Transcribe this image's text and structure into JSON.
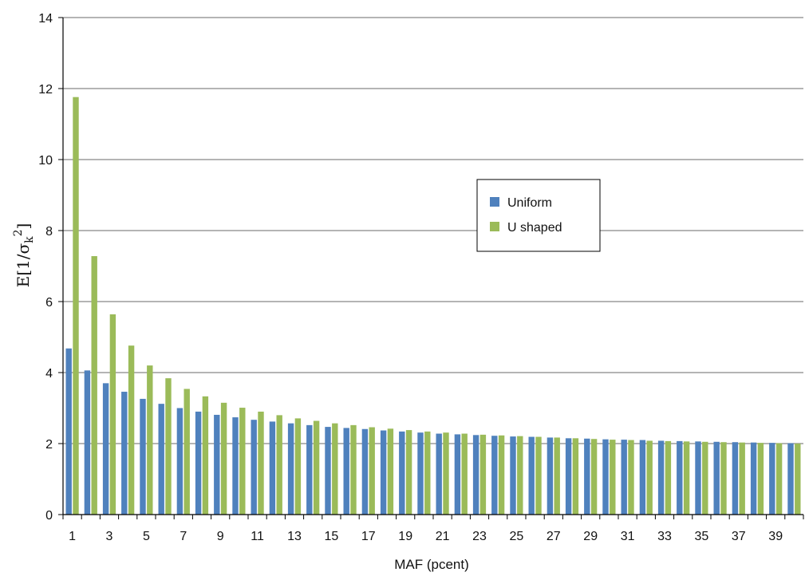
{
  "chart_data": {
    "type": "bar",
    "title": "",
    "xlabel": "MAF (pcent)",
    "ylabel": "E[1/σk2]",
    "ylabel_parts": {
      "prefix": "E[1/σ",
      "subscript": "k",
      "superscript": "2",
      "suffix": "]"
    },
    "ylim": [
      0,
      14
    ],
    "yticks": [
      0,
      2,
      4,
      6,
      8,
      10,
      12,
      14
    ],
    "grid": true,
    "legend_position": "center-right",
    "categories": [
      1,
      2,
      3,
      4,
      5,
      6,
      7,
      8,
      9,
      10,
      11,
      12,
      13,
      14,
      15,
      16,
      17,
      18,
      19,
      20,
      21,
      22,
      23,
      24,
      25,
      26,
      27,
      28,
      29,
      30,
      31,
      32,
      33,
      34,
      35,
      36,
      37,
      38,
      39,
      40
    ],
    "xtick_labels_shown": [
      1,
      3,
      5,
      7,
      9,
      11,
      13,
      15,
      17,
      19,
      21,
      23,
      25,
      27,
      29,
      31,
      33,
      35,
      37,
      39
    ],
    "series": [
      {
        "name": "Uniform",
        "color": "#4f81bd",
        "values": [
          4.68,
          4.06,
          3.7,
          3.46,
          3.26,
          3.12,
          3.0,
          2.9,
          2.81,
          2.74,
          2.67,
          2.62,
          2.57,
          2.52,
          2.47,
          2.44,
          2.41,
          2.37,
          2.34,
          2.31,
          2.28,
          2.26,
          2.24,
          2.22,
          2.2,
          2.19,
          2.17,
          2.15,
          2.14,
          2.12,
          2.11,
          2.1,
          2.08,
          2.07,
          2.06,
          2.05,
          2.04,
          2.03,
          2.02,
          2.01
        ]
      },
      {
        "name": "U shaped",
        "color": "#9bbb59",
        "values": [
          11.76,
          7.28,
          5.64,
          4.76,
          4.2,
          3.84,
          3.54,
          3.33,
          3.15,
          3.01,
          2.9,
          2.8,
          2.71,
          2.64,
          2.57,
          2.52,
          2.46,
          2.42,
          2.38,
          2.34,
          2.31,
          2.28,
          2.25,
          2.23,
          2.21,
          2.19,
          2.17,
          2.15,
          2.13,
          2.11,
          2.1,
          2.08,
          2.07,
          2.06,
          2.05,
          2.04,
          2.03,
          2.02,
          2.01,
          2.0
        ]
      }
    ]
  }
}
